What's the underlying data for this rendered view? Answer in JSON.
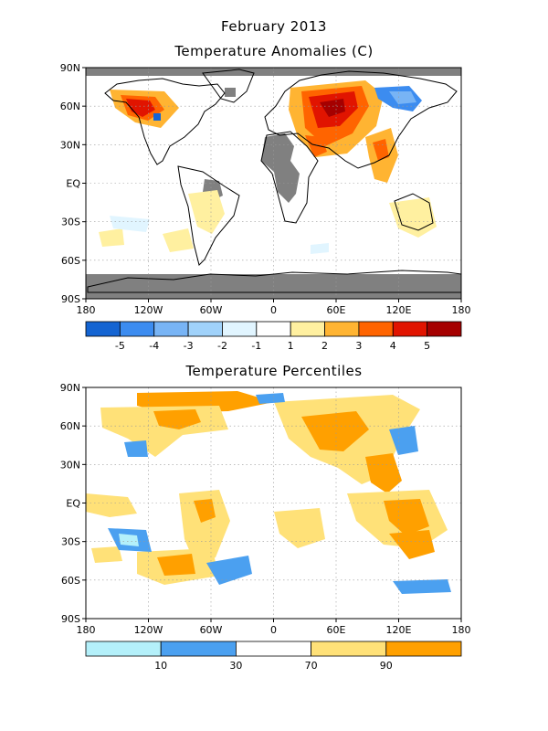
{
  "header": {
    "date_title": "February 2013",
    "panel1_title": "Temperature Anomalies (C)",
    "panel2_title": "Temperature Percentiles"
  },
  "axes": {
    "lon_labels": [
      "180",
      "120W",
      "60W",
      "0",
      "60E",
      "120E",
      "180"
    ],
    "lat_labels": [
      "90N",
      "60N",
      "30N",
      "EQ",
      "30S",
      "60S",
      "90S"
    ]
  },
  "anomaly_legend": {
    "labels": [
      "-5",
      "-4",
      "-3",
      "-2",
      "-1",
      "1",
      "2",
      "3",
      "4",
      "5"
    ],
    "colors": [
      "#1464d2",
      "#3c8cf0",
      "#78b4f5",
      "#a0d2fa",
      "#e1f5ff",
      "#ffffff",
      "#fff0a0",
      "#ffb432",
      "#ff6400",
      "#e11400",
      "#a50000"
    ]
  },
  "percentile_legend": {
    "labels": [
      "10",
      "30",
      "70",
      "90"
    ],
    "colors": [
      "#b4f0fa",
      "#4ba0f0",
      "#ffffff",
      "#ffe178",
      "#ffa000"
    ]
  },
  "colors": {
    "missing": "#808080",
    "coast": "#000000",
    "grid": "#999999"
  }
}
